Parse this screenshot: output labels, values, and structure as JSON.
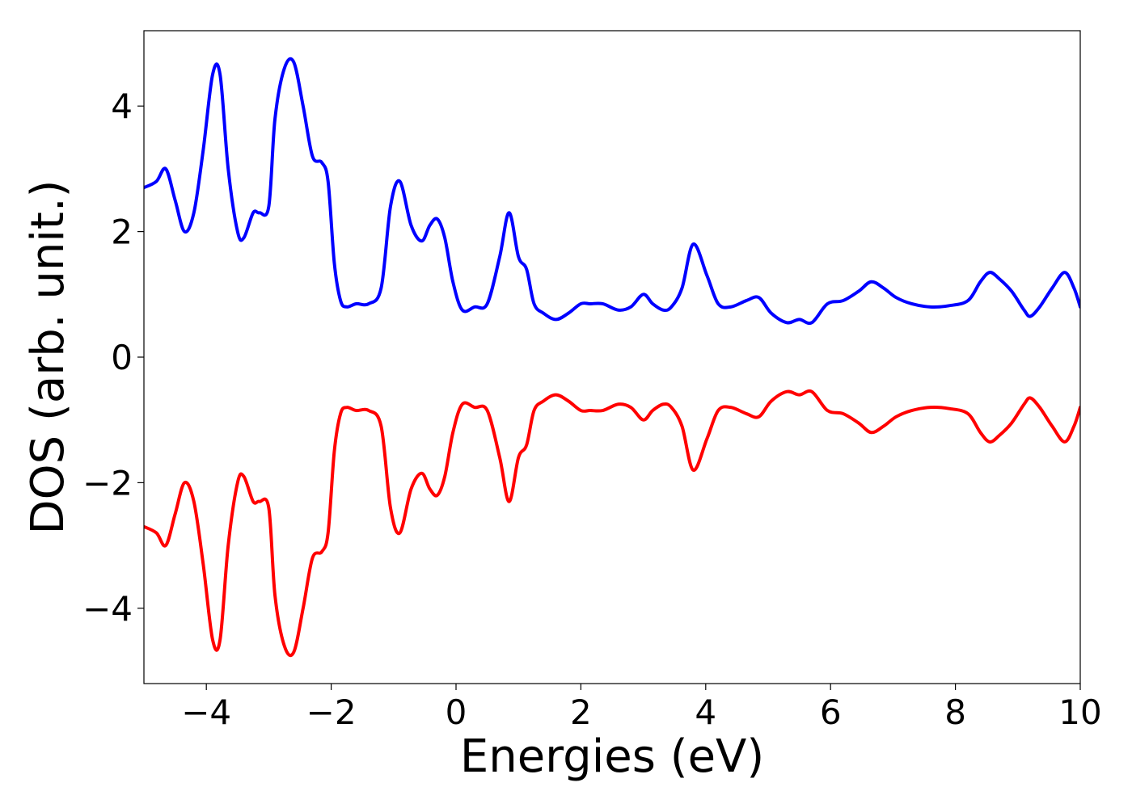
{
  "chart_data": {
    "type": "line",
    "title": "",
    "xlabel": "Energies (eV)",
    "ylabel": "DOS (arb. unit.)",
    "xlim": [
      -5,
      10
    ],
    "ylim": [
      -5.2,
      5.2
    ],
    "xticks": [
      -4,
      -2,
      0,
      2,
      4,
      6,
      8,
      10
    ],
    "xtick_labels": [
      "−4",
      "−2",
      "0",
      "2",
      "4",
      "6",
      "8",
      "10"
    ],
    "yticks": [
      -4,
      -2,
      0,
      2,
      4
    ],
    "ytick_labels": [
      "−4",
      "−2",
      "0",
      "2",
      "4"
    ],
    "grid": false,
    "legend": "none",
    "series": [
      {
        "color": "#0000ff",
        "x": [
          -5.0,
          -4.8,
          -4.65,
          -4.5,
          -4.35,
          -4.2,
          -4.05,
          -3.9,
          -3.78,
          -3.65,
          -3.5,
          -3.4,
          -3.25,
          -3.15,
          -3.0,
          -2.9,
          -2.75,
          -2.6,
          -2.45,
          -2.3,
          -2.15,
          -2.05,
          -1.95,
          -1.85,
          -1.75,
          -1.6,
          -1.4,
          -1.2,
          -1.05,
          -0.9,
          -0.72,
          -0.55,
          -0.42,
          -0.3,
          -0.18,
          -0.05,
          0.1,
          0.3,
          0.5,
          0.7,
          0.85,
          1.0,
          1.13,
          1.25,
          1.4,
          1.6,
          1.8,
          2.0,
          2.15,
          2.35,
          2.6,
          2.8,
          3.0,
          3.15,
          3.32,
          3.45,
          3.62,
          3.8,
          4.02,
          4.2,
          4.4,
          4.65,
          4.85,
          5.05,
          5.3,
          5.5,
          5.7,
          5.95,
          6.2,
          6.45,
          6.65,
          6.85,
          7.05,
          7.3,
          7.6,
          7.9,
          8.2,
          8.4,
          8.55,
          8.7,
          8.9,
          9.1,
          9.2,
          9.35,
          9.55,
          9.75,
          9.9,
          10.0
        ],
        "y": [
          2.7,
          2.8,
          3.0,
          2.5,
          2.0,
          2.3,
          3.3,
          4.5,
          4.5,
          3.0,
          2.0,
          1.9,
          2.3,
          2.3,
          2.4,
          3.8,
          4.6,
          4.7,
          4.0,
          3.2,
          3.1,
          2.8,
          1.5,
          0.9,
          0.8,
          0.85,
          0.85,
          1.1,
          2.4,
          2.8,
          2.1,
          1.85,
          2.1,
          2.2,
          1.9,
          1.2,
          0.75,
          0.8,
          0.85,
          1.6,
          2.3,
          1.6,
          1.4,
          0.85,
          0.7,
          0.6,
          0.7,
          0.85,
          0.85,
          0.85,
          0.75,
          0.8,
          1.0,
          0.85,
          0.75,
          0.8,
          1.1,
          1.8,
          1.3,
          0.85,
          0.8,
          0.9,
          0.95,
          0.7,
          0.55,
          0.6,
          0.55,
          0.85,
          0.9,
          1.05,
          1.2,
          1.1,
          0.95,
          0.85,
          0.8,
          0.82,
          0.9,
          1.2,
          1.35,
          1.25,
          1.05,
          0.75,
          0.65,
          0.8,
          1.1,
          1.35,
          1.1,
          0.8
        ]
      },
      {
        "color": "#ff0000",
        "x": [
          -5.0,
          -4.8,
          -4.65,
          -4.5,
          -4.35,
          -4.2,
          -4.05,
          -3.9,
          -3.78,
          -3.65,
          -3.5,
          -3.4,
          -3.25,
          -3.15,
          -3.0,
          -2.9,
          -2.75,
          -2.6,
          -2.45,
          -2.3,
          -2.15,
          -2.05,
          -1.95,
          -1.85,
          -1.75,
          -1.6,
          -1.4,
          -1.2,
          -1.05,
          -0.9,
          -0.72,
          -0.55,
          -0.42,
          -0.3,
          -0.18,
          -0.05,
          0.1,
          0.3,
          0.5,
          0.7,
          0.85,
          1.0,
          1.13,
          1.25,
          1.4,
          1.6,
          1.8,
          2.0,
          2.15,
          2.35,
          2.6,
          2.8,
          3.0,
          3.15,
          3.32,
          3.45,
          3.62,
          3.8,
          4.02,
          4.2,
          4.4,
          4.65,
          4.85,
          5.05,
          5.3,
          5.5,
          5.7,
          5.95,
          6.2,
          6.45,
          6.65,
          6.85,
          7.05,
          7.3,
          7.6,
          7.9,
          8.2,
          8.4,
          8.55,
          8.7,
          8.9,
          9.1,
          9.2,
          9.35,
          9.55,
          9.75,
          9.9,
          10.0
        ],
        "y": [
          -2.7,
          -2.8,
          -3.0,
          -2.5,
          -2.0,
          -2.3,
          -3.3,
          -4.5,
          -4.5,
          -3.0,
          -2.0,
          -1.9,
          -2.3,
          -2.3,
          -2.4,
          -3.8,
          -4.6,
          -4.7,
          -4.0,
          -3.2,
          -3.1,
          -2.8,
          -1.5,
          -0.9,
          -0.8,
          -0.85,
          -0.85,
          -1.1,
          -2.4,
          -2.8,
          -2.1,
          -1.85,
          -2.1,
          -2.2,
          -1.9,
          -1.2,
          -0.75,
          -0.8,
          -0.85,
          -1.6,
          -2.3,
          -1.6,
          -1.4,
          -0.85,
          -0.7,
          -0.6,
          -0.7,
          -0.85,
          -0.85,
          -0.85,
          -0.75,
          -0.8,
          -1.0,
          -0.85,
          -0.75,
          -0.8,
          -1.1,
          -1.8,
          -1.3,
          -0.85,
          -0.8,
          -0.9,
          -0.95,
          -0.7,
          -0.55,
          -0.6,
          -0.55,
          -0.85,
          -0.9,
          -1.05,
          -1.2,
          -1.1,
          -0.95,
          -0.85,
          -0.8,
          -0.82,
          -0.9,
          -1.2,
          -1.35,
          -1.25,
          -1.05,
          -0.75,
          -0.65,
          -0.8,
          -1.1,
          -1.35,
          -1.1,
          -0.8
        ]
      }
    ]
  }
}
